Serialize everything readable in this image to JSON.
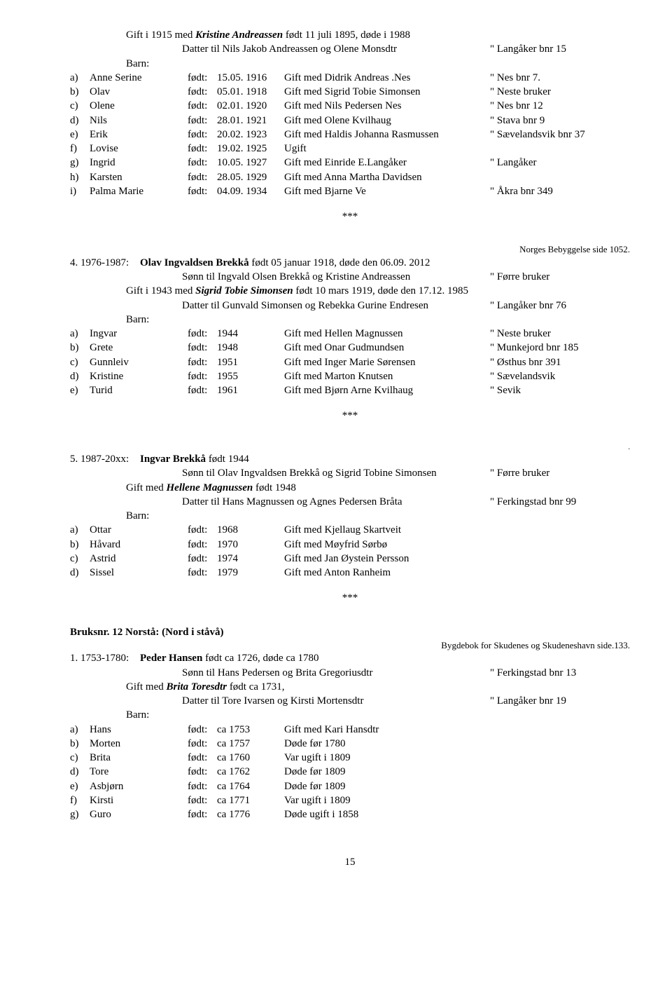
{
  "entry3": {
    "giftLine": {
      "prefix": "Gift i 1915 med ",
      "spouse": "Kristine Andreassen",
      "suffix": " født 11 juli 1895, døde i 1988"
    },
    "datter": {
      "left": "Datter til Nils Jakob Andreassen og Olene Monsdtr",
      "ref": "\" Langåker bnr 15"
    },
    "barnLabel": "Barn:",
    "children": [
      {
        "m": "a)",
        "name": "Anne Serine",
        "fodt": "født:",
        "date": "15.05. 1916",
        "note": "Gift med Didrik Andreas .Nes",
        "ref": "\" Nes bnr 7."
      },
      {
        "m": "b)",
        "name": "Olav",
        "fodt": "født:",
        "date": "05.01. 1918",
        "note": "Gift med Sigrid Tobie Simonsen",
        "ref": "\" Neste bruker"
      },
      {
        "m": "c)",
        "name": "Olene",
        "fodt": "født:",
        "date": "02.01. 1920",
        "note": "Gift med Nils Pedersen Nes",
        "ref": "\" Nes bnr 12"
      },
      {
        "m": "d)",
        "name": "Nils",
        "fodt": "født:",
        "date": "28.01. 1921",
        "note": "Gift med Olene Kvilhaug",
        "ref": "\" Stava bnr 9"
      },
      {
        "m": "e)",
        "name": "Erik",
        "fodt": "født:",
        "date": "20.02. 1923",
        "note": "Gift med Haldis Johanna Rasmussen",
        "ref": "\" Sævelandsvik bnr 37"
      },
      {
        "m": "f)",
        "name": "Lovise",
        "fodt": "født:",
        "date": "19.02. 1925",
        "note": "Ugift",
        "ref": ""
      },
      {
        "m": "g)",
        "name": "Ingrid",
        "fodt": "født:",
        "date": "10.05. 1927",
        "note": "Gift med Einride E.Langåker",
        "ref": "\" Langåker"
      },
      {
        "m": "h)",
        "name": "Karsten",
        "fodt": "født:",
        "date": "28.05. 1929",
        "note": "Gift med Anna Martha Davidsen",
        "ref": ""
      },
      {
        "m": "i)",
        "name": "Palma Marie",
        "fodt": "født:",
        "date": "04.09. 1934",
        "note": "Gift med Bjarne Ve",
        "ref": "\" Åkra bnr 349"
      }
    ]
  },
  "sep": "***",
  "entry4": {
    "topRef": "Norges Bebyggelse side 1052.",
    "period": "4. 1976-1987:",
    "headName": "Olav Ingvaldsen Brekkå",
    "headRest": " født 05 januar 1918, døde den 06.09. 2012",
    "sonn": {
      "left": "Sønn til Ingvald Olsen Brekkå og Kristine Andreassen",
      "ref": "\" Førre  bruker"
    },
    "giftLine": {
      "prefix": "Gift i 1943 med ",
      "spouse": "Sigrid Tobie Simonsen",
      "suffix": " født 10 mars 1919, døde den 17.12.  1985"
    },
    "datter": {
      "left": "Datter til Gunvald Simonsen og Rebekka Gurine Endresen",
      "ref": "\" Langåker bnr 76"
    },
    "barnLabel": "Barn:",
    "children": [
      {
        "m": "a)",
        "name": "Ingvar",
        "fodt": "født:",
        "date": "1944",
        "note": "Gift med Hellen Magnussen",
        "ref": "\" Neste bruker"
      },
      {
        "m": "b)",
        "name": "Grete",
        "fodt": "født:",
        "date": "1948",
        "note": "Gift med Onar Gudmundsen",
        "ref": "\" Munkejord bnr 185"
      },
      {
        "m": "c)",
        "name": "Gunnleiv",
        "fodt": "født:",
        "date": "1951",
        "note": "Gift med Inger Marie Sørensen",
        "ref": "\" Østhus bnr 391"
      },
      {
        "m": "d)",
        "name": "Kristine",
        "fodt": "født:",
        "date": "1955",
        "note": "Gift med Marton Knutsen",
        "ref": "\" Sævelandsvik"
      },
      {
        "m": "e)",
        "name": "Turid",
        "fodt": "født:",
        "date": "1961",
        "note": "Gift med Bjørn Arne Kvilhaug",
        "ref": "\" Sevik"
      }
    ]
  },
  "entry5": {
    "dot": ".",
    "period": "5. 1987-20xx:",
    "headName": "Ingvar Brekkå",
    "headRest": " født 1944",
    "sonn": {
      "left": "Sønn til Olav Ingvaldsen  Brekkå og Sigrid Tobine Simonsen",
      "ref": "\" Førre  bruker"
    },
    "giftLine": {
      "prefix": "Gift med ",
      "spouse": "Hellene Magnussen",
      "suffix": " født 1948"
    },
    "datter": {
      "left": "Datter til Hans Magnussen og Agnes Pedersen Bråta",
      "ref": "\" Ferkingstad bnr 99"
    },
    "barnLabel": "Barn:",
    "children": [
      {
        "m": "a)",
        "name": "Ottar",
        "fodt": "født:",
        "date": "1968",
        "note": "Gift med Kjellaug Skartveit",
        "ref": ""
      },
      {
        "m": "b)",
        "name": "Håvard",
        "fodt": "født:",
        "date": "1970",
        "note": "Gift med Møyfrid Sørbø",
        "ref": ""
      },
      {
        "m": "c)",
        "name": "Astrid",
        "fodt": "født:",
        "date": "1974",
        "note": "Gift med Jan Øystein Persson",
        "ref": ""
      },
      {
        "m": "d)",
        "name": "Sissel",
        "fodt": "født:",
        "date": "1979",
        "note": "Gift med Anton Ranheim",
        "ref": ""
      }
    ]
  },
  "bruksnr": {
    "title": "Bruksnr. 12  Norstå:  (Nord i ståvå)",
    "ref": "Bygdebok for Skudenes og Skudeneshavn side.133."
  },
  "entry1": {
    "period": "1. 1753-1780:",
    "headName": "Peder Hansen",
    "headRest": " født ca 1726, døde ca 1780",
    "sonn": {
      "left": "Sønn til Hans Pedersen og Brita Gregoriusdtr",
      "ref": "\" Ferkingstad bnr 13"
    },
    "giftLine": {
      "prefix": "Gift med ",
      "spouse": "Brita Toresdtr",
      "suffix": " født ca 1731,"
    },
    "datter": {
      "left": "Datter til Tore Ivarsen og Kirsti Mortensdtr",
      "ref": "\" Langåker bnr 19"
    },
    "barnLabel": "Barn:",
    "children": [
      {
        "m": "a)",
        "name": "Hans",
        "fodt": "født:",
        "date": "ca 1753",
        "note": "Gift med Kari Hansdtr",
        "ref": ""
      },
      {
        "m": "b)",
        "name": "Morten",
        "fodt": "født:",
        "date": "ca 1757",
        "note": "Døde  før 1780",
        "ref": ""
      },
      {
        "m": "c)",
        "name": "Brita",
        "fodt": "født:",
        "date": "ca 1760",
        "note": "Var ugift i 1809",
        "ref": ""
      },
      {
        "m": "d)",
        "name": "Tore",
        "fodt": "født:",
        "date": "ca 1762",
        "note": "Døde  før 1809",
        "ref": ""
      },
      {
        "m": "e)",
        "name": "Asbjørn",
        "fodt": "født:",
        "date": "ca 1764",
        "note": "Døde  før 1809",
        "ref": ""
      },
      {
        "m": "f)",
        "name": "Kirsti",
        "fodt": "født:",
        "date": "ca 1771",
        "note": "Var ugift i 1809",
        "ref": ""
      },
      {
        "m": "g)",
        "name": "Guro",
        "fodt": "født:",
        "date": "ca 1776",
        "note": "Døde ugift i 1858",
        "ref": ""
      }
    ]
  },
  "pageNumber": "15"
}
